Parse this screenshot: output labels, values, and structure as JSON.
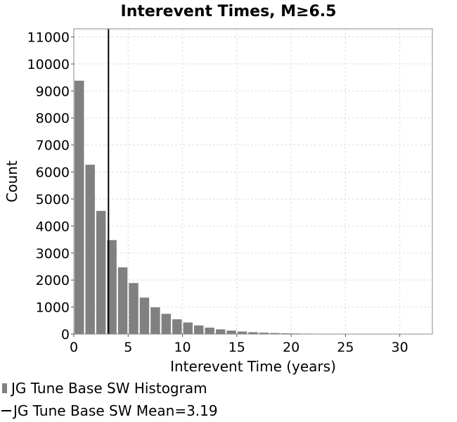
{
  "chart_data": {
    "type": "bar",
    "title": "Interevent Times, M≥6.5",
    "xlabel": "Interevent Time (years)",
    "ylabel": "Count",
    "xlim": [
      0,
      33
    ],
    "ylim": [
      0,
      11300
    ],
    "xticks": [
      0,
      5,
      10,
      15,
      20,
      25,
      30
    ],
    "yticks": [
      0,
      1000,
      2000,
      3000,
      4000,
      5000,
      6000,
      7000,
      8000,
      9000,
      10000,
      11000
    ],
    "grid": true,
    "legend_position": "bottom-left",
    "bin_width": 1,
    "bins": [
      {
        "x": 0.5,
        "y": 9380
      },
      {
        "x": 1.5,
        "y": 6270
      },
      {
        "x": 2.5,
        "y": 4560
      },
      {
        "x": 3.5,
        "y": 3480
      },
      {
        "x": 4.5,
        "y": 2470
      },
      {
        "x": 5.5,
        "y": 1890
      },
      {
        "x": 6.5,
        "y": 1350
      },
      {
        "x": 7.5,
        "y": 990
      },
      {
        "x": 8.5,
        "y": 750
      },
      {
        "x": 9.5,
        "y": 550
      },
      {
        "x": 10.5,
        "y": 430
      },
      {
        "x": 11.5,
        "y": 320
      },
      {
        "x": 12.5,
        "y": 240
      },
      {
        "x": 13.5,
        "y": 175
      },
      {
        "x": 14.5,
        "y": 130
      },
      {
        "x": 15.5,
        "y": 95
      },
      {
        "x": 16.5,
        "y": 70
      },
      {
        "x": 17.5,
        "y": 52
      },
      {
        "x": 18.5,
        "y": 40
      },
      {
        "x": 19.5,
        "y": 30
      },
      {
        "x": 20.5,
        "y": 22
      },
      {
        "x": 21.5,
        "y": 17
      },
      {
        "x": 22.5,
        "y": 13
      },
      {
        "x": 23.5,
        "y": 10
      },
      {
        "x": 24.5,
        "y": 8
      },
      {
        "x": 25.5,
        "y": 6
      },
      {
        "x": 26.5,
        "y": 5
      },
      {
        "x": 27.5,
        "y": 4
      },
      {
        "x": 28.5,
        "y": 3
      },
      {
        "x": 29.5,
        "y": 3
      },
      {
        "x": 30.5,
        "y": 2
      },
      {
        "x": 31.5,
        "y": 2
      },
      {
        "x": 32.5,
        "y": 1
      }
    ],
    "mean": 3.19,
    "series": [
      {
        "name": "JG Tune Base SW Histogram",
        "kind": "histogram",
        "color": "#808080"
      },
      {
        "name": "JG Tune Base SW Mean=3.19",
        "kind": "vertical-line",
        "color": "#000000"
      }
    ]
  }
}
